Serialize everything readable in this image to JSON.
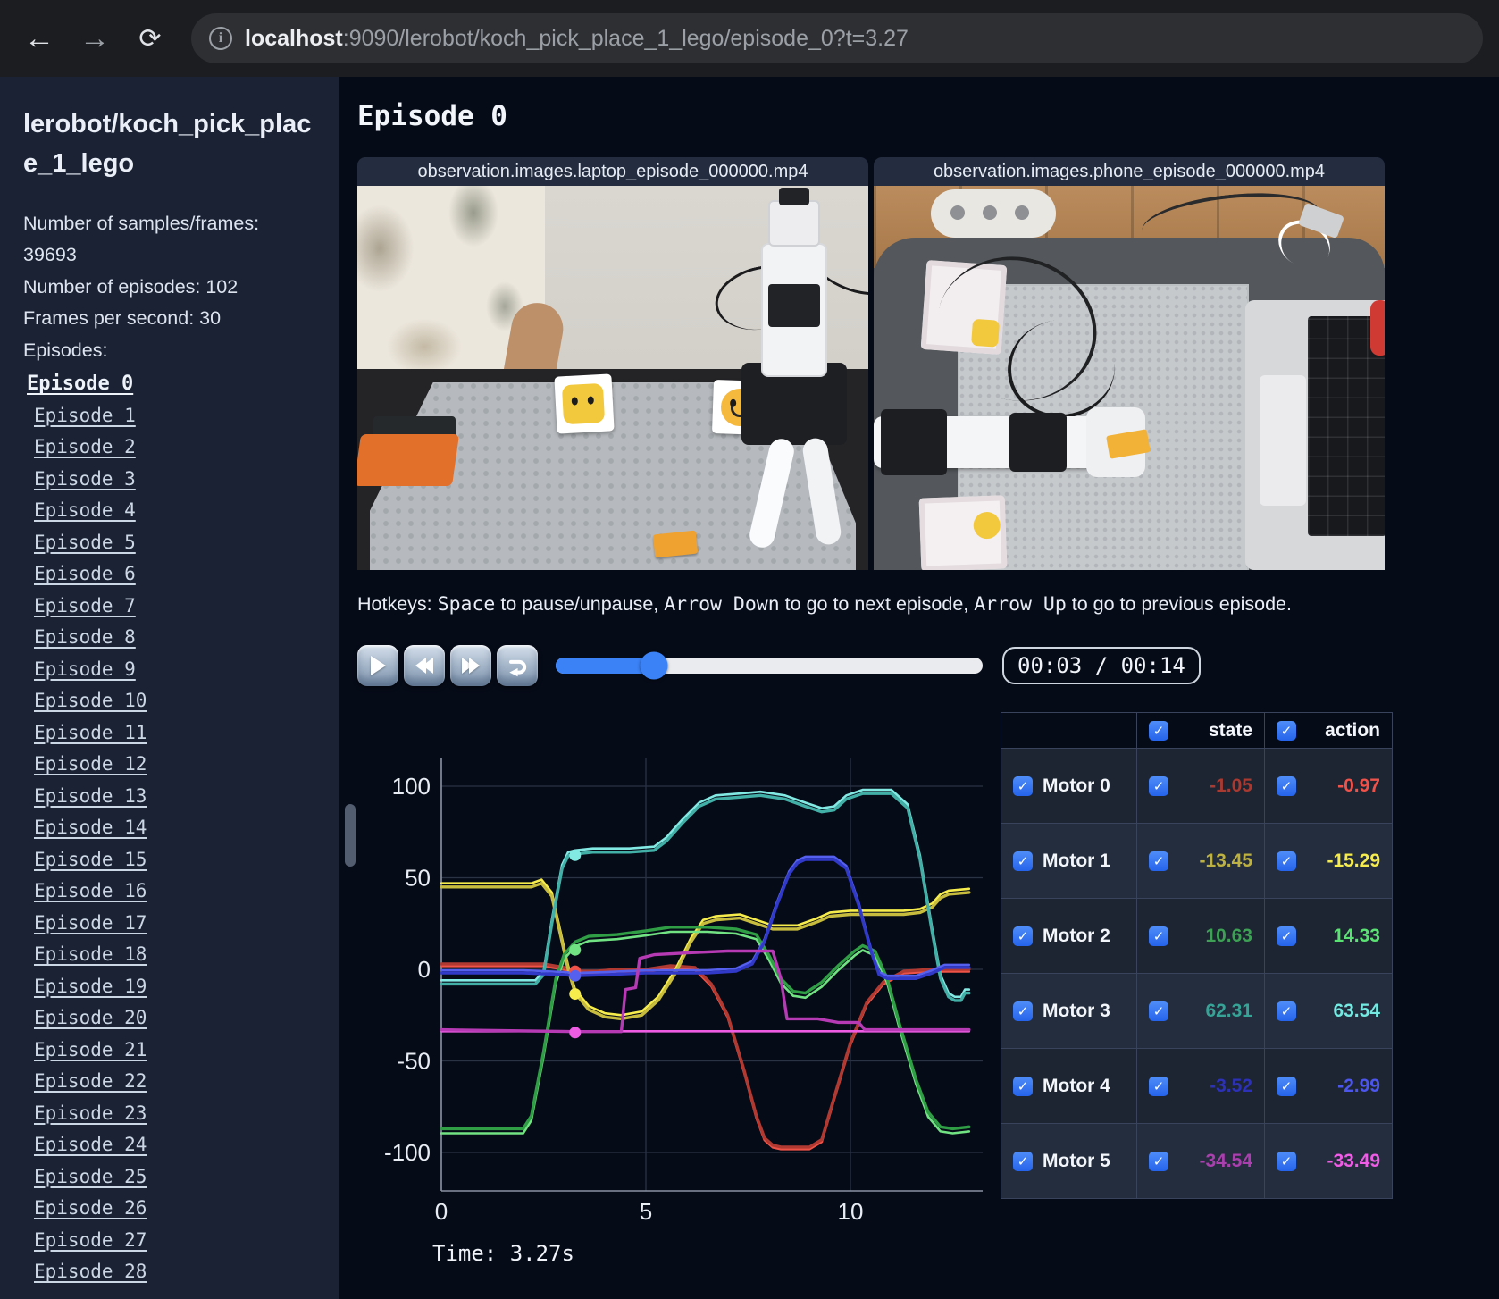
{
  "browser": {
    "url_host": "localhost",
    "url_rest": ":9090/lerobot/koch_pick_place_1_lego/episode_0?t=3.27",
    "icons": {
      "back": "←",
      "forward": "→",
      "reload": "⟳",
      "info": "i"
    }
  },
  "sidebar": {
    "title": "lerobot/koch_pick_place_1_lego",
    "stats": [
      "Number of samples/frames: 39693",
      "Number of episodes: 102",
      "Frames per second: 30"
    ],
    "episodes_heading": "Episodes:",
    "active_episode": 0,
    "episodes": [
      "Episode 0",
      "Episode 1",
      "Episode 2",
      "Episode 3",
      "Episode 4",
      "Episode 5",
      "Episode 6",
      "Episode 7",
      "Episode 8",
      "Episode 9",
      "Episode 10",
      "Episode 11",
      "Episode 12",
      "Episode 13",
      "Episode 14",
      "Episode 15",
      "Episode 16",
      "Episode 17",
      "Episode 18",
      "Episode 19",
      "Episode 20",
      "Episode 21",
      "Episode 22",
      "Episode 23",
      "Episode 24",
      "Episode 25",
      "Episode 26",
      "Episode 27",
      "Episode 28"
    ]
  },
  "main": {
    "title": "Episode 0",
    "videos": [
      {
        "label": "observation.images.laptop_episode_000000.mp4"
      },
      {
        "label": "observation.images.phone_episode_000000.mp4"
      }
    ],
    "hotkeys": {
      "segments": [
        {
          "text": "Hotkeys: ",
          "mono": false
        },
        {
          "text": "Space",
          "mono": true
        },
        {
          "text": " to pause/unpause, ",
          "mono": false
        },
        {
          "text": "Arrow Down",
          "mono": true
        },
        {
          "text": " to go to next episode, ",
          "mono": false
        },
        {
          "text": "Arrow Up",
          "mono": true
        },
        {
          "text": " to go to previous episode.",
          "mono": false
        }
      ]
    },
    "player": {
      "time_display": "00:03 / 00:14",
      "progress_pct": 23,
      "buttons": [
        "play",
        "rewind",
        "fast-forward",
        "loop"
      ],
      "accent": "#3b82f6"
    },
    "time_label": "Time: 3.27s"
  },
  "table": {
    "check_glyph": "✓",
    "accent": "#3b82f6",
    "headers": [
      "state",
      "action"
    ],
    "rows": [
      {
        "label": "Motor 0",
        "state": "-1.05",
        "action": "-0.97",
        "state_color": "#a83a32",
        "action_color": "#f0524a"
      },
      {
        "label": "Motor 1",
        "state": "-13.45",
        "action": "-15.29",
        "state_color": "#bdb143",
        "action_color": "#f6ec4d"
      },
      {
        "label": "Motor 2",
        "state": "10.63",
        "action": "14.33",
        "state_color": "#3da055",
        "action_color": "#5ae272"
      },
      {
        "label": "Motor 3",
        "state": "62.31",
        "action": "63.54",
        "state_color": "#37a296",
        "action_color": "#74e9e1"
      },
      {
        "label": "Motor 4",
        "state": "-3.52",
        "action": "-2.99",
        "state_color": "#2c31b5",
        "action_color": "#4c56ec"
      },
      {
        "label": "Motor 5",
        "state": "-34.54",
        "action": "-33.49",
        "state_color": "#aa3fae",
        "action_color": "#ef5ce5"
      }
    ]
  },
  "chart_data": {
    "type": "line",
    "title": "",
    "xlabel": "",
    "ylabel": "",
    "x_ticks": [
      0,
      5,
      10
    ],
    "y_ticks": [
      100,
      50,
      0,
      -50,
      -100
    ],
    "xlim": [
      0,
      12.9
    ],
    "ylim": [
      -113,
      113
    ],
    "grid": true,
    "legend_position": "none",
    "marker_time": 3.27,
    "series": [
      {
        "name": "Motor 0 (state/action)",
        "color_state": "#b03a32",
        "color_action": "#ef5246",
        "action_offset": -1.2,
        "marker_value": -1.05,
        "points": [
          [
            0,
            3
          ],
          [
            2.5,
            3
          ],
          [
            3.0,
            1
          ],
          [
            3.27,
            -1
          ],
          [
            3.8,
            -1
          ],
          [
            4.3,
            0
          ],
          [
            5.0,
            0
          ],
          [
            5.6,
            2
          ],
          [
            6.2,
            1
          ],
          [
            6.6,
            -8
          ],
          [
            7.0,
            -25
          ],
          [
            7.4,
            -55
          ],
          [
            7.7,
            -80
          ],
          [
            7.9,
            -92
          ],
          [
            8.1,
            -96
          ],
          [
            8.3,
            -97
          ],
          [
            9.0,
            -97
          ],
          [
            9.3,
            -93
          ],
          [
            9.6,
            -70
          ],
          [
            10.0,
            -40
          ],
          [
            10.4,
            -18
          ],
          [
            10.8,
            -7
          ],
          [
            11.3,
            -1
          ],
          [
            12.0,
            0
          ],
          [
            12.9,
            0
          ]
        ]
      },
      {
        "name": "Motor 1 (state/action)",
        "color_state": "#c8bc3e",
        "color_action": "#f6ec4b",
        "action_offset": 2,
        "marker_value": -13.45,
        "points": [
          [
            0,
            45
          ],
          [
            2.2,
            45
          ],
          [
            2.45,
            47
          ],
          [
            2.7,
            40
          ],
          [
            2.9,
            20
          ],
          [
            3.1,
            0
          ],
          [
            3.27,
            -13
          ],
          [
            3.6,
            -22
          ],
          [
            4.0,
            -26
          ],
          [
            4.4,
            -27
          ],
          [
            4.9,
            -25
          ],
          [
            5.3,
            -17
          ],
          [
            5.7,
            -3
          ],
          [
            6.1,
            15
          ],
          [
            6.4,
            25
          ],
          [
            6.7,
            27
          ],
          [
            7.3,
            28
          ],
          [
            7.7,
            25
          ],
          [
            8.1,
            22
          ],
          [
            8.7,
            22
          ],
          [
            9.2,
            26
          ],
          [
            9.5,
            29
          ],
          [
            10.0,
            30
          ],
          [
            11.3,
            30
          ],
          [
            11.7,
            31
          ],
          [
            12.0,
            34
          ],
          [
            12.2,
            39
          ],
          [
            12.4,
            41
          ],
          [
            12.9,
            42
          ]
        ]
      },
      {
        "name": "Motor 2 (state/action)",
        "color_state": "#2f9e45",
        "color_action": "#72e383",
        "action_offset": -2.5,
        "marker_value": 10.63,
        "points": [
          [
            0,
            -87
          ],
          [
            2.0,
            -87
          ],
          [
            2.2,
            -80
          ],
          [
            2.5,
            -45
          ],
          [
            2.8,
            -5
          ],
          [
            3.0,
            8
          ],
          [
            3.27,
            15
          ],
          [
            3.6,
            18
          ],
          [
            4.3,
            19
          ],
          [
            5.0,
            21
          ],
          [
            5.6,
            23
          ],
          [
            6.5,
            23
          ],
          [
            7.2,
            22
          ],
          [
            7.7,
            19
          ],
          [
            8.0,
            8
          ],
          [
            8.3,
            -5
          ],
          [
            8.6,
            -12
          ],
          [
            8.9,
            -13
          ],
          [
            9.3,
            -7
          ],
          [
            9.7,
            2
          ],
          [
            10.1,
            10
          ],
          [
            10.3,
            13
          ],
          [
            10.6,
            10
          ],
          [
            10.9,
            -5
          ],
          [
            11.2,
            -30
          ],
          [
            11.6,
            -60
          ],
          [
            11.9,
            -78
          ],
          [
            12.2,
            -86
          ],
          [
            12.5,
            -87
          ],
          [
            12.9,
            -86
          ]
        ]
      },
      {
        "name": "Motor 3 (state/action)",
        "color_state": "#43b0a8",
        "color_action": "#82e9e3",
        "action_offset": 2,
        "marker_value": 62.31,
        "points": [
          [
            0,
            -8
          ],
          [
            2.3,
            -8
          ],
          [
            2.5,
            -3
          ],
          [
            2.7,
            25
          ],
          [
            2.95,
            55
          ],
          [
            3.1,
            62
          ],
          [
            3.27,
            63
          ],
          [
            3.7,
            64
          ],
          [
            4.6,
            64
          ],
          [
            5.2,
            65
          ],
          [
            5.5,
            70
          ],
          [
            5.9,
            80
          ],
          [
            6.3,
            89
          ],
          [
            6.7,
            93
          ],
          [
            7.3,
            94
          ],
          [
            7.8,
            95
          ],
          [
            8.4,
            93
          ],
          [
            8.9,
            89
          ],
          [
            9.3,
            86
          ],
          [
            9.6,
            87
          ],
          [
            9.9,
            93
          ],
          [
            10.3,
            96
          ],
          [
            11.0,
            96
          ],
          [
            11.4,
            88
          ],
          [
            11.7,
            60
          ],
          [
            12.0,
            20
          ],
          [
            12.2,
            -5
          ],
          [
            12.4,
            -15
          ],
          [
            12.55,
            -17
          ],
          [
            12.7,
            -17
          ],
          [
            12.8,
            -13
          ],
          [
            12.9,
            -13
          ]
        ]
      },
      {
        "name": "Motor 4 (state/action)",
        "color_state": "#3039c8",
        "color_action": "#5560ef",
        "action_offset": 1.5,
        "marker_value": -3.52,
        "points": [
          [
            0,
            -2
          ],
          [
            2.0,
            -2
          ],
          [
            3.0,
            -3
          ],
          [
            3.27,
            -3.5
          ],
          [
            4.0,
            -3
          ],
          [
            5.0,
            -2
          ],
          [
            6.5,
            -2
          ],
          [
            7.2,
            -1
          ],
          [
            7.6,
            3
          ],
          [
            7.9,
            15
          ],
          [
            8.2,
            35
          ],
          [
            8.5,
            52
          ],
          [
            8.7,
            58
          ],
          [
            8.9,
            60
          ],
          [
            9.6,
            60
          ],
          [
            9.9,
            55
          ],
          [
            10.2,
            35
          ],
          [
            10.5,
            10
          ],
          [
            10.7,
            -3
          ],
          [
            10.9,
            -5
          ],
          [
            11.6,
            -5
          ],
          [
            12.0,
            -2
          ],
          [
            12.3,
            1
          ],
          [
            12.9,
            1
          ]
        ]
      },
      {
        "name": "Motor 5 (state/action)",
        "color_state": "#b63ab4",
        "color_action": "#ee5ce4",
        "action_offset": 0,
        "marker_value": -34.54,
        "points": [
          [
            0,
            -33
          ],
          [
            3.27,
            -34
          ],
          [
            4.4,
            -34
          ],
          [
            4.5,
            -11
          ],
          [
            4.75,
            -10
          ],
          [
            4.85,
            6
          ],
          [
            5.2,
            8
          ],
          [
            6.0,
            9
          ],
          [
            7.0,
            10
          ],
          [
            8.1,
            10
          ],
          [
            8.3,
            -5
          ],
          [
            8.45,
            -27
          ],
          [
            9.2,
            -27
          ],
          [
            9.7,
            -29
          ],
          [
            10.2,
            -29
          ],
          [
            10.35,
            -33
          ],
          [
            12.9,
            -33
          ]
        ],
        "action_points": [
          [
            0,
            -33.8
          ],
          [
            12.9,
            -33.8
          ]
        ]
      }
    ]
  }
}
